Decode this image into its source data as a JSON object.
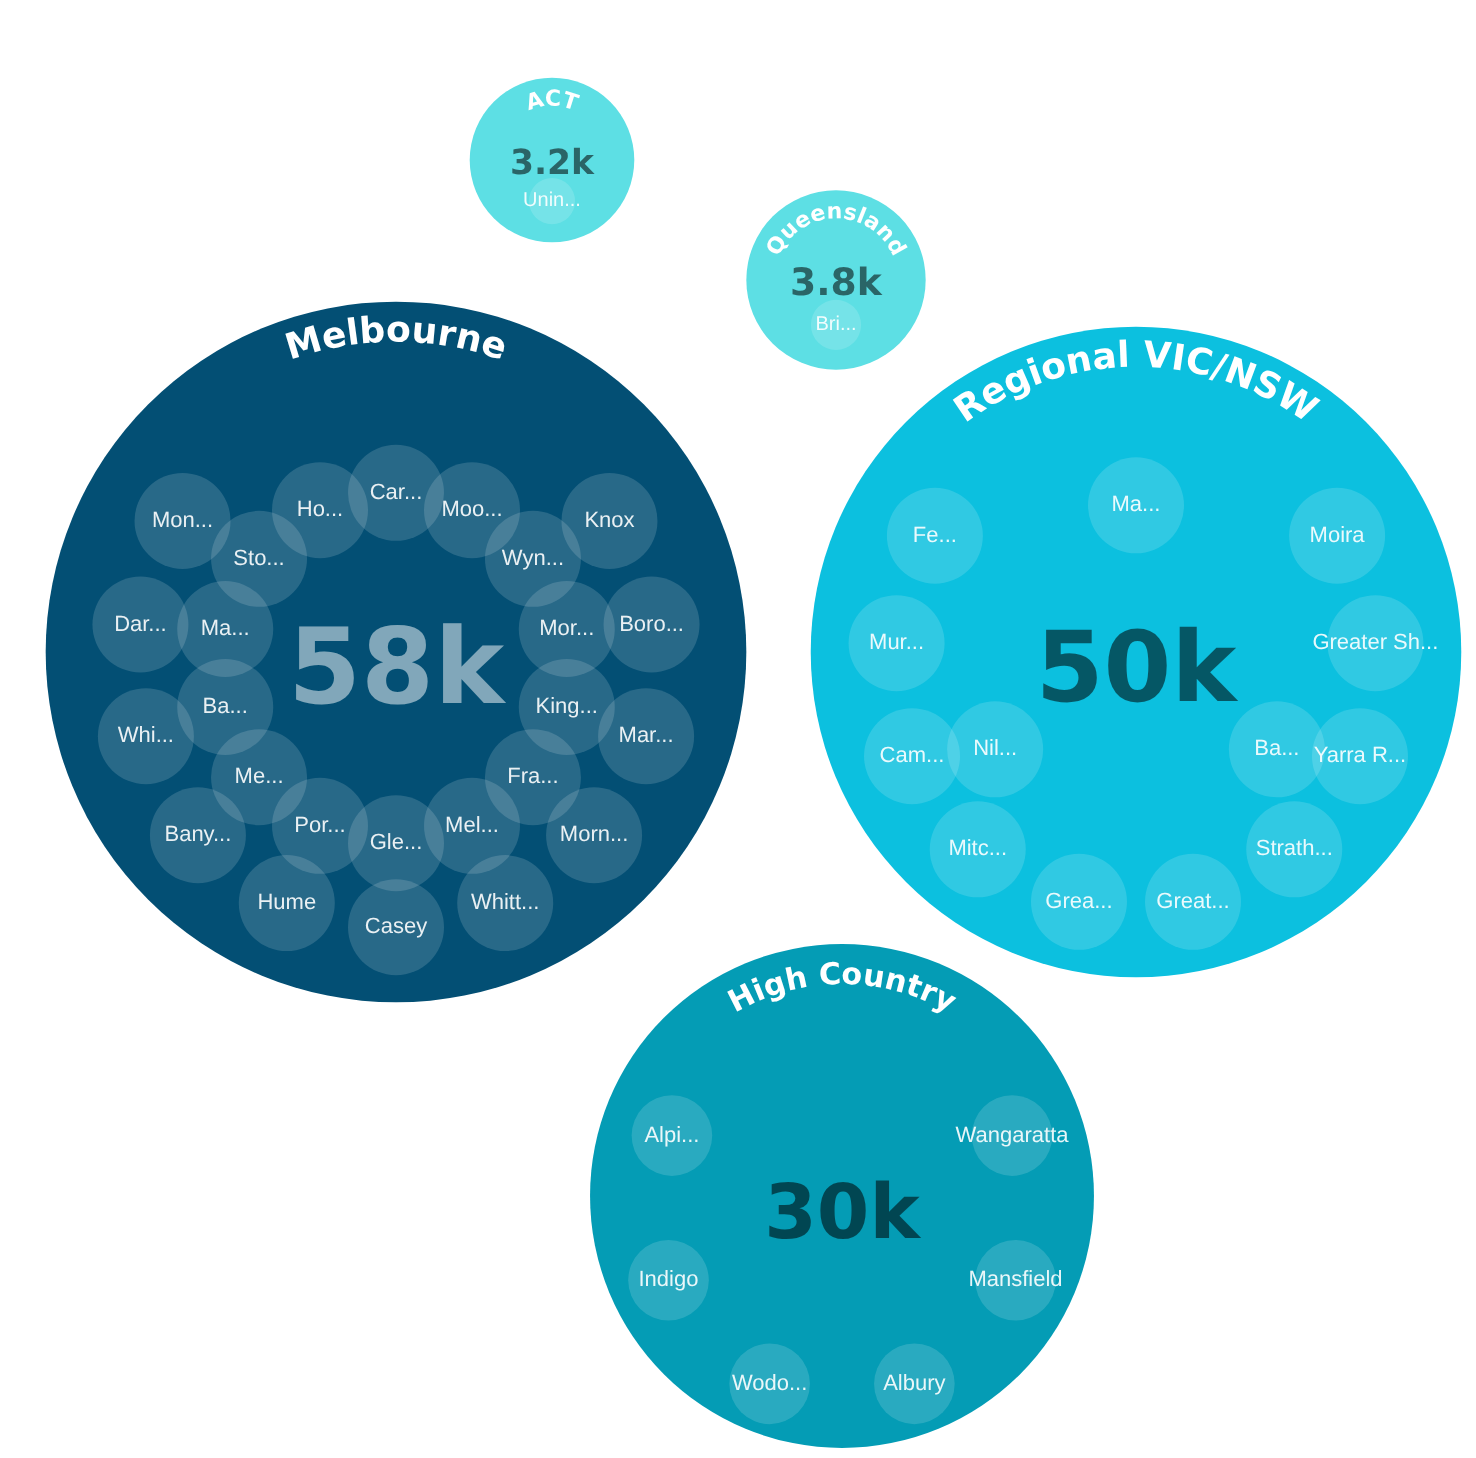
{
  "chart_data": {
    "type": "other",
    "categories": [
      "ACT",
      "Queensland",
      "Melbourne",
      "Regional VIC/NSW",
      "High Country"
    ],
    "values": [
      3.2,
      3.8,
      58,
      50,
      30
    ],
    "value_labels": [
      "3.2k",
      "3.8k",
      "58k",
      "50k",
      "30k"
    ],
    "colors": [
      "#5ddfe4",
      "#5ddfe4",
      "#034f74",
      "#0cc0df",
      "#049cb5"
    ],
    "annotations": [
      {
        "text": "Unin...",
        "x": "ACT"
      },
      {
        "text": "Bri...",
        "x": "Queensland"
      },
      {
        "text": "Knox",
        "x": "Melbourne"
      },
      {
        "text": "Boro...",
        "x": "Melbourne"
      },
      {
        "text": "Mar...",
        "x": "Melbourne"
      },
      {
        "text": "Morn...",
        "x": "Melbourne"
      },
      {
        "text": "Whitt...",
        "x": "Melbourne"
      },
      {
        "text": "Casey",
        "x": "Melbourne"
      },
      {
        "text": "Hume",
        "x": "Melbourne"
      },
      {
        "text": "Bany...",
        "x": "Melbourne"
      },
      {
        "text": "Whi...",
        "x": "Melbourne"
      },
      {
        "text": "Dar...",
        "x": "Melbourne"
      },
      {
        "text": "Mon...",
        "x": "Melbourne"
      },
      {
        "text": "Car...",
        "x": "Melbourne"
      },
      {
        "text": "Moo...",
        "x": "Melbourne"
      },
      {
        "text": "Wyn...",
        "x": "Melbourne"
      },
      {
        "text": "Mor...",
        "x": "Melbourne"
      },
      {
        "text": "King...",
        "x": "Melbourne"
      },
      {
        "text": "Fra...",
        "x": "Melbourne"
      },
      {
        "text": "Mel...",
        "x": "Melbourne"
      },
      {
        "text": "Gle...",
        "x": "Melbourne"
      },
      {
        "text": "Por...",
        "x": "Melbourne"
      },
      {
        "text": "Me...",
        "x": "Melbourne"
      },
      {
        "text": "Ba...",
        "x": "Melbourne"
      },
      {
        "text": "Ma...",
        "x": "Melbourne"
      },
      {
        "text": "Sto...",
        "x": "Melbourne"
      },
      {
        "text": "Ho...",
        "x": "Melbourne"
      },
      {
        "text": "Moira",
        "x": "Regional VIC/NSW"
      },
      {
        "text": "Greater Sh...",
        "x": "Regional VIC/NSW"
      },
      {
        "text": "Yarra R...",
        "x": "Regional VIC/NSW"
      },
      {
        "text": "Strath...",
        "x": "Regional VIC/NSW"
      },
      {
        "text": "Great...",
        "x": "Regional VIC/NSW"
      },
      {
        "text": "Grea...",
        "x": "Regional VIC/NSW"
      },
      {
        "text": "Mitc...",
        "x": "Regional VIC/NSW"
      },
      {
        "text": "Cam...",
        "x": "Regional VIC/NSW"
      },
      {
        "text": "Mur...",
        "x": "Regional VIC/NSW"
      },
      {
        "text": "Fe...",
        "x": "Regional VIC/NSW"
      },
      {
        "text": "Ma...",
        "x": "Regional VIC/NSW"
      },
      {
        "text": "Ba...",
        "x": "Regional VIC/NSW"
      },
      {
        "text": "Nil...",
        "x": "Regional VIC/NSW"
      },
      {
        "text": "Wangaratta",
        "x": "High Country"
      },
      {
        "text": "Mansfield",
        "x": "High Country"
      },
      {
        "text": "Albury",
        "x": "High Country"
      },
      {
        "text": "Wodo...",
        "x": "High Country"
      },
      {
        "text": "Indigo",
        "x": "High Country"
      },
      {
        "text": "Alpi...",
        "x": "High Country"
      }
    ]
  }
}
